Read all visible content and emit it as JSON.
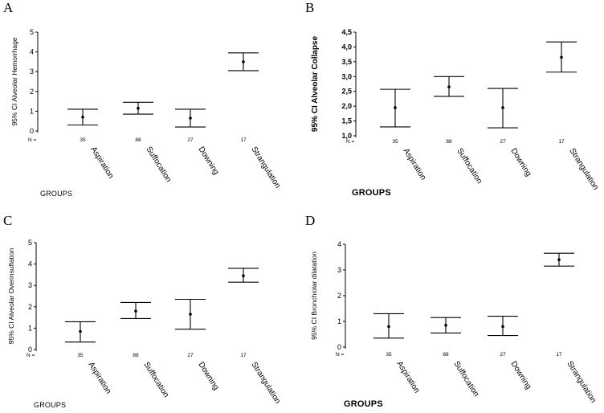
{
  "chart_data": [
    {
      "panel": "A",
      "type": "errorbar",
      "ylabel": "95% CI Alveolar Hemorrhage",
      "xlabel": "GROUPS",
      "ylim": [
        0,
        5
      ],
      "yticks": [
        "0",
        "1",
        "2",
        "3",
        "4",
        "5"
      ],
      "n_label": "N =",
      "categories": [
        "Aspiration",
        "Suffocation",
        "Downing",
        "Strangulation"
      ],
      "n": [
        "35",
        "88",
        "27",
        "17"
      ],
      "mean": [
        0.7,
        1.15,
        0.65,
        3.5
      ],
      "lower": [
        0.3,
        0.85,
        0.2,
        3.05
      ],
      "upper": [
        1.1,
        1.45,
        1.1,
        3.95
      ]
    },
    {
      "panel": "B",
      "type": "errorbar",
      "ylabel": "95% CI Alveolar Collapse",
      "xlabel": "GROUPS",
      "ylim": [
        1.0,
        4.5
      ],
      "yticks": [
        "1,0",
        "1,5",
        "2,0",
        "2,5",
        "3,0",
        "3,5",
        "4,0",
        "4,5"
      ],
      "n_label": "N =",
      "categories": [
        "Aspiration",
        "Suffocation",
        "Downing",
        "Strangulation"
      ],
      "n": [
        "35",
        "88",
        "27",
        "17"
      ],
      "mean": [
        1.95,
        2.65,
        1.95,
        3.65
      ],
      "lower": [
        1.3,
        2.33,
        1.27,
        3.15
      ],
      "upper": [
        2.57,
        3.0,
        2.6,
        4.17
      ]
    },
    {
      "panel": "C",
      "type": "errorbar",
      "ylabel": "95% CI Alveolar Overinsuflation",
      "xlabel": "GROUPS",
      "ylim": [
        0,
        5
      ],
      "yticks": [
        "0",
        "1",
        "2",
        "3",
        "4",
        "5"
      ],
      "n_label": "N =",
      "categories": [
        "Aspiration",
        "Suffocation",
        "Downing",
        "Strangulation"
      ],
      "n": [
        "35",
        "88",
        "27",
        "17"
      ],
      "mean": [
        0.85,
        1.8,
        1.65,
        3.45
      ],
      "lower": [
        0.35,
        1.45,
        0.95,
        3.15
      ],
      "upper": [
        1.3,
        2.2,
        2.35,
        3.8
      ]
    },
    {
      "panel": "D",
      "type": "errorbar",
      "ylabel": "95% CI Bronchiolar dilatation",
      "xlabel": "GROUPS",
      "ylim": [
        0,
        4
      ],
      "yticks": [
        "0",
        "1",
        "2",
        "3",
        "4"
      ],
      "n_label": "N =",
      "categories": [
        "Aspiration",
        "Suffocation",
        "Downing",
        "Strangulation"
      ],
      "n": [
        "35",
        "88",
        "27",
        "17"
      ],
      "mean": [
        0.8,
        0.85,
        0.8,
        3.4
      ],
      "lower": [
        0.35,
        0.55,
        0.45,
        3.15
      ],
      "upper": [
        1.3,
        1.15,
        1.2,
        3.65
      ]
    }
  ]
}
